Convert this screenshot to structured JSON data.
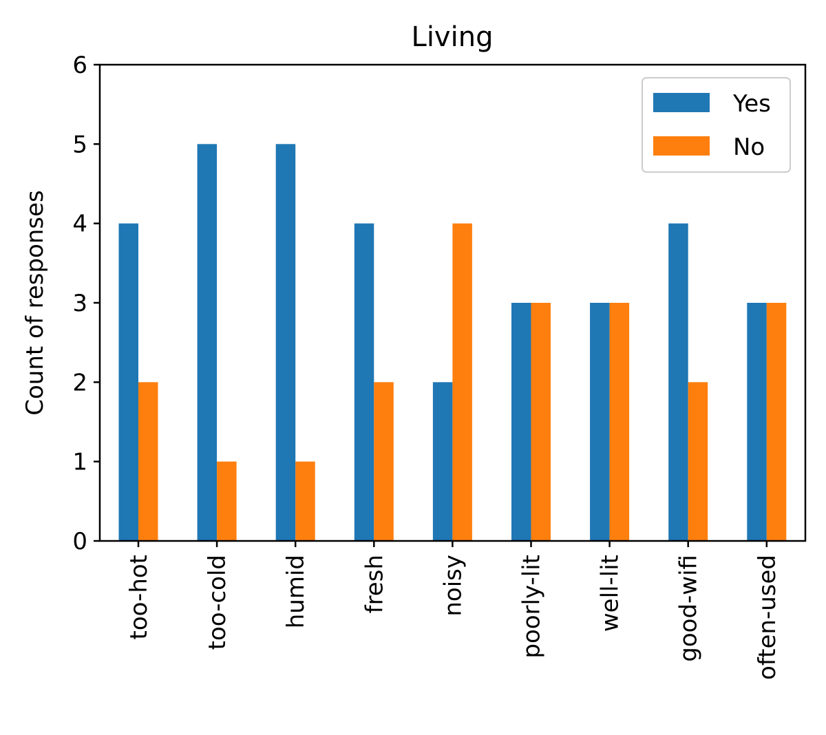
{
  "chart_data": {
    "type": "bar",
    "title": "Living",
    "xlabel": "",
    "ylabel": "Count of responses",
    "categories": [
      "too-hot",
      "too-cold",
      "humid",
      "fresh",
      "noisy",
      "poorly-lit",
      "well-lit",
      "good-wifi",
      "often-used"
    ],
    "series": [
      {
        "name": "Yes",
        "color": "#1f77b4",
        "values": [
          4,
          5,
          5,
          4,
          2,
          3,
          3,
          4,
          3
        ]
      },
      {
        "name": "No",
        "color": "#ff7f0e",
        "values": [
          2,
          1,
          1,
          2,
          4,
          3,
          3,
          2,
          3
        ]
      }
    ],
    "ylim": [
      0,
      6
    ],
    "yticks": [
      "0",
      "1",
      "2",
      "3",
      "4",
      "5",
      "6"
    ],
    "grid": false,
    "legend_position": "top-right"
  }
}
